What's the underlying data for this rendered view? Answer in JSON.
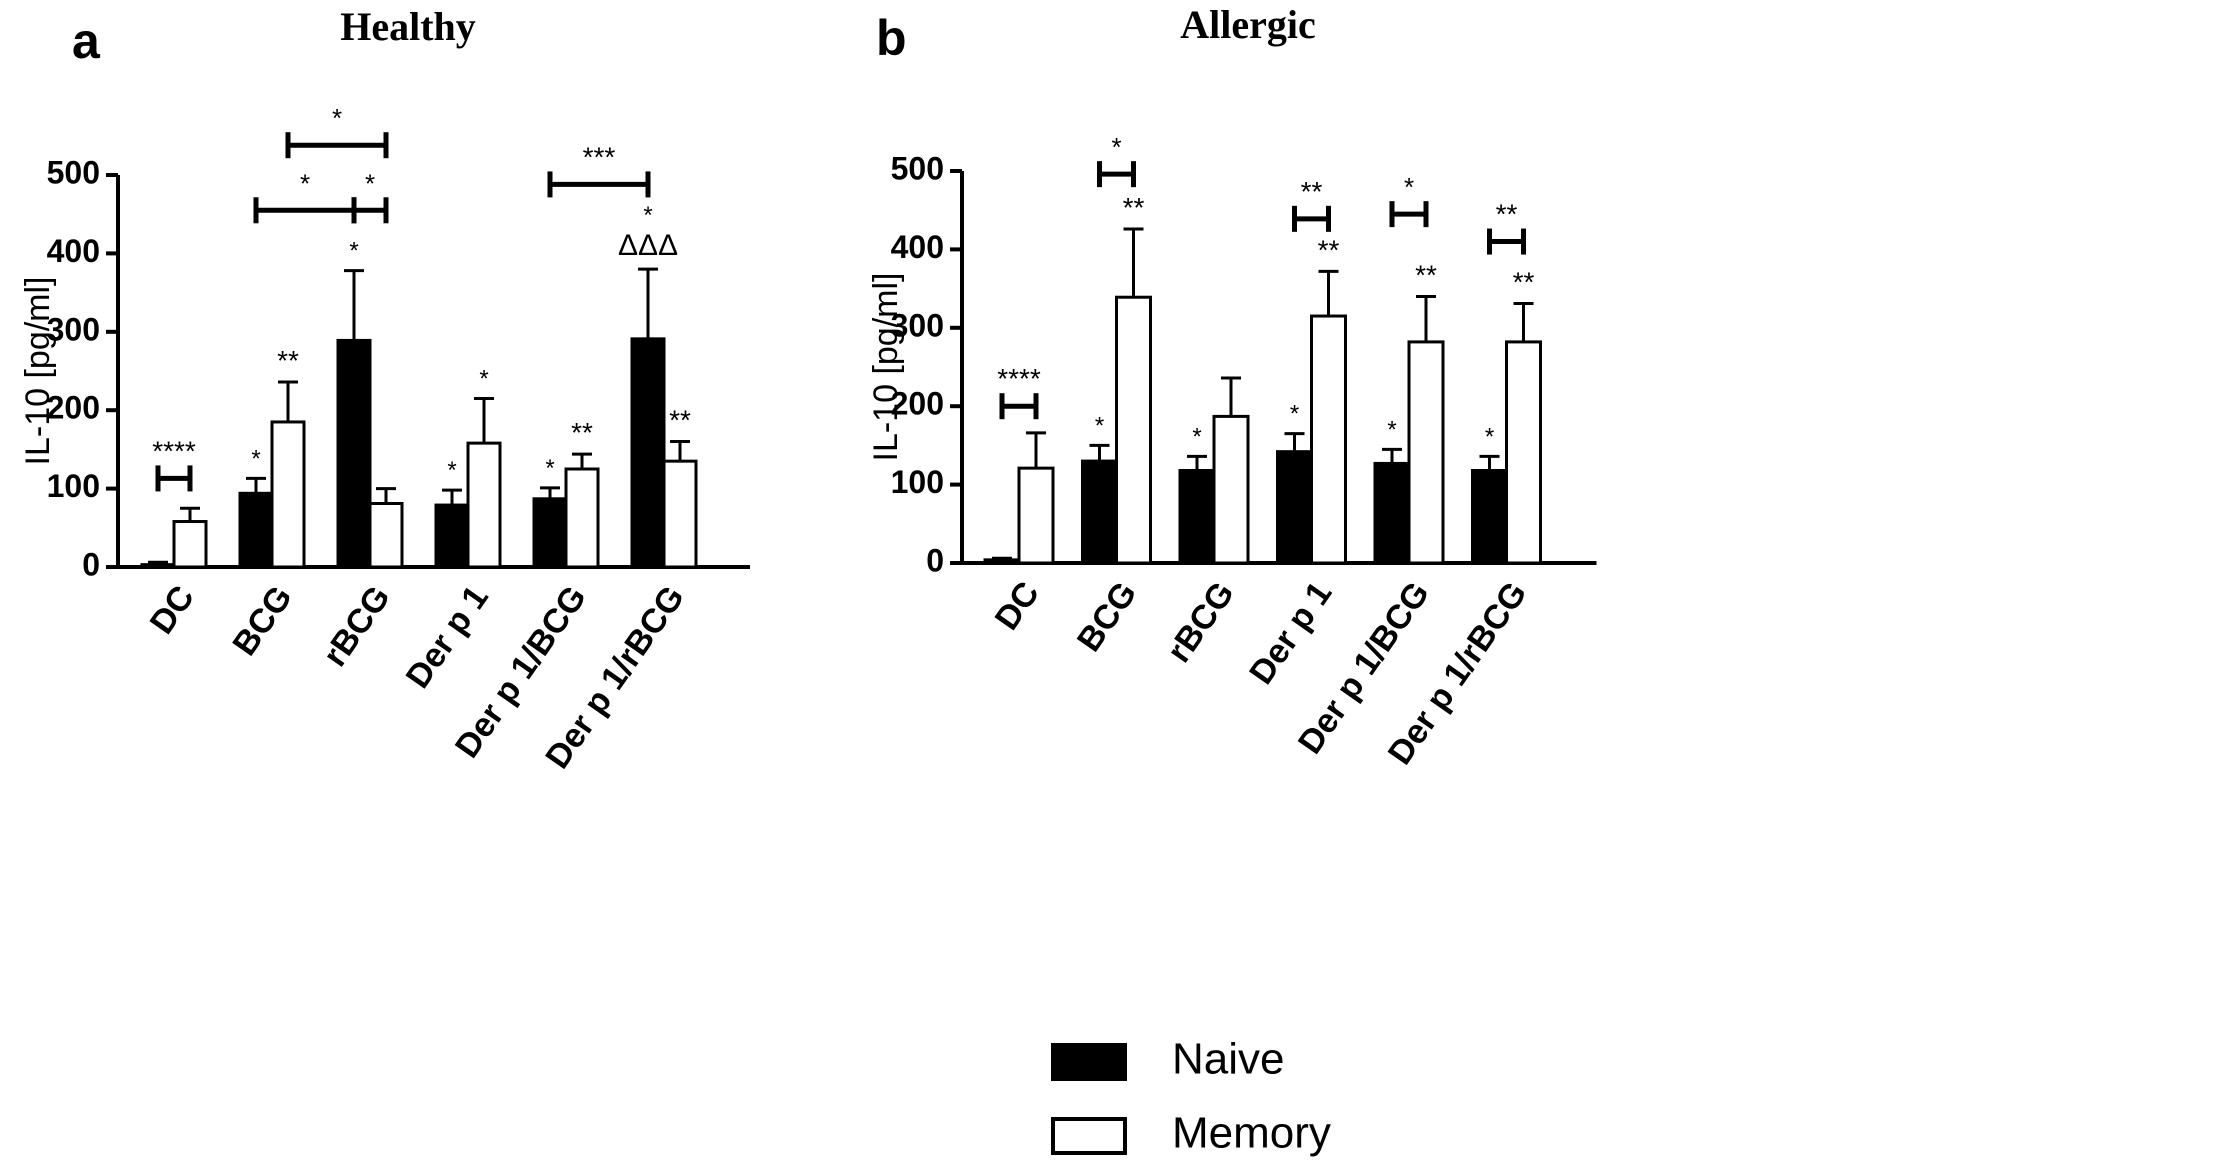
{
  "figure": {
    "legend": [
      {
        "name": "Naive",
        "fill": "#000000"
      },
      {
        "name": "Memory",
        "fill": "#ffffff"
      }
    ]
  },
  "chart_data": [
    {
      "type": "bar",
      "panel_label": "a",
      "title": "Healthy",
      "xlabel": "",
      "ylabel": "IL-10 [pg/ml]",
      "ylim": [
        0,
        500
      ],
      "yticks": [
        "0",
        "100",
        "200",
        "300",
        "400",
        "500"
      ],
      "categories": [
        "DC",
        "BCG",
        "rBCG",
        "Der p 1",
        "Der p 1/BCG",
        "Der p 1/rBCG"
      ],
      "series": [
        {
          "name": "Naive",
          "values": [
            3,
            94,
            289,
            79,
            87,
            291
          ],
          "errors": [
            3,
            19,
            89,
            19,
            14,
            89
          ],
          "sig": [
            "",
            "*",
            "*",
            "*",
            "*",
            "*"
          ]
        },
        {
          "name": "Memory",
          "values": [
            58,
            185,
            81,
            158,
            125,
            135
          ],
          "errors": [
            17,
            51,
            19,
            57,
            19,
            25
          ],
          "sig": [
            "",
            "**",
            "",
            "*",
            "**",
            "**"
          ]
        }
      ],
      "extra_marks": [
        {
          "category": 5,
          "series": 0,
          "text": "ΔΔΔ"
        }
      ],
      "brackets": [
        {
          "label": "****",
          "type": "short",
          "category": 0,
          "y": 113
        },
        {
          "label": "*",
          "type": "span",
          "from": [
            1,
            0
          ],
          "to": [
            2,
            0
          ],
          "y": 455
        },
        {
          "label": "*",
          "type": "span",
          "from": [
            2,
            0
          ],
          "to": [
            2,
            1
          ],
          "y": 455
        },
        {
          "label": "*",
          "type": "span",
          "from": [
            1,
            1
          ],
          "to": [
            2,
            1
          ],
          "y": 538
        },
        {
          "label": "***",
          "type": "span",
          "from": [
            4,
            0
          ],
          "to": [
            5,
            0
          ],
          "y": 488
        }
      ]
    },
    {
      "type": "bar",
      "panel_label": "b",
      "title": "Allergic",
      "xlabel": "",
      "ylabel": "IL-10 [pg/ml]",
      "ylim": [
        0,
        500
      ],
      "yticks": [
        "0",
        "100",
        "200",
        "300",
        "400",
        "500"
      ],
      "categories": [
        "DC",
        "BCG",
        "rBCG",
        "Der p 1",
        "Der p 1/BCG",
        "Der p 1/rBCG"
      ],
      "series": [
        {
          "name": "Naive",
          "values": [
            4,
            130,
            118,
            142,
            127,
            118
          ],
          "errors": [
            2,
            20,
            18,
            23,
            18,
            18
          ],
          "sig": [
            "",
            "*",
            "*",
            "*",
            "*",
            "*"
          ]
        },
        {
          "name": "Memory",
          "values": [
            121,
            339,
            187,
            315,
            282,
            282
          ],
          "errors": [
            45,
            87,
            49,
            57,
            58,
            49
          ],
          "sig": [
            "",
            "**",
            "",
            "**",
            "**",
            "**"
          ]
        }
      ],
      "extra_marks": [],
      "brackets": [
        {
          "label": "****",
          "type": "short",
          "category": 0,
          "y": 200
        },
        {
          "label": "*",
          "type": "short",
          "category": 1,
          "y": 496
        },
        {
          "label": "**",
          "type": "short",
          "category": 3,
          "y": 439
        },
        {
          "label": "*",
          "type": "short",
          "category": 4,
          "y": 445
        },
        {
          "label": "**",
          "type": "short",
          "category": 5,
          "y": 410
        }
      ]
    }
  ]
}
